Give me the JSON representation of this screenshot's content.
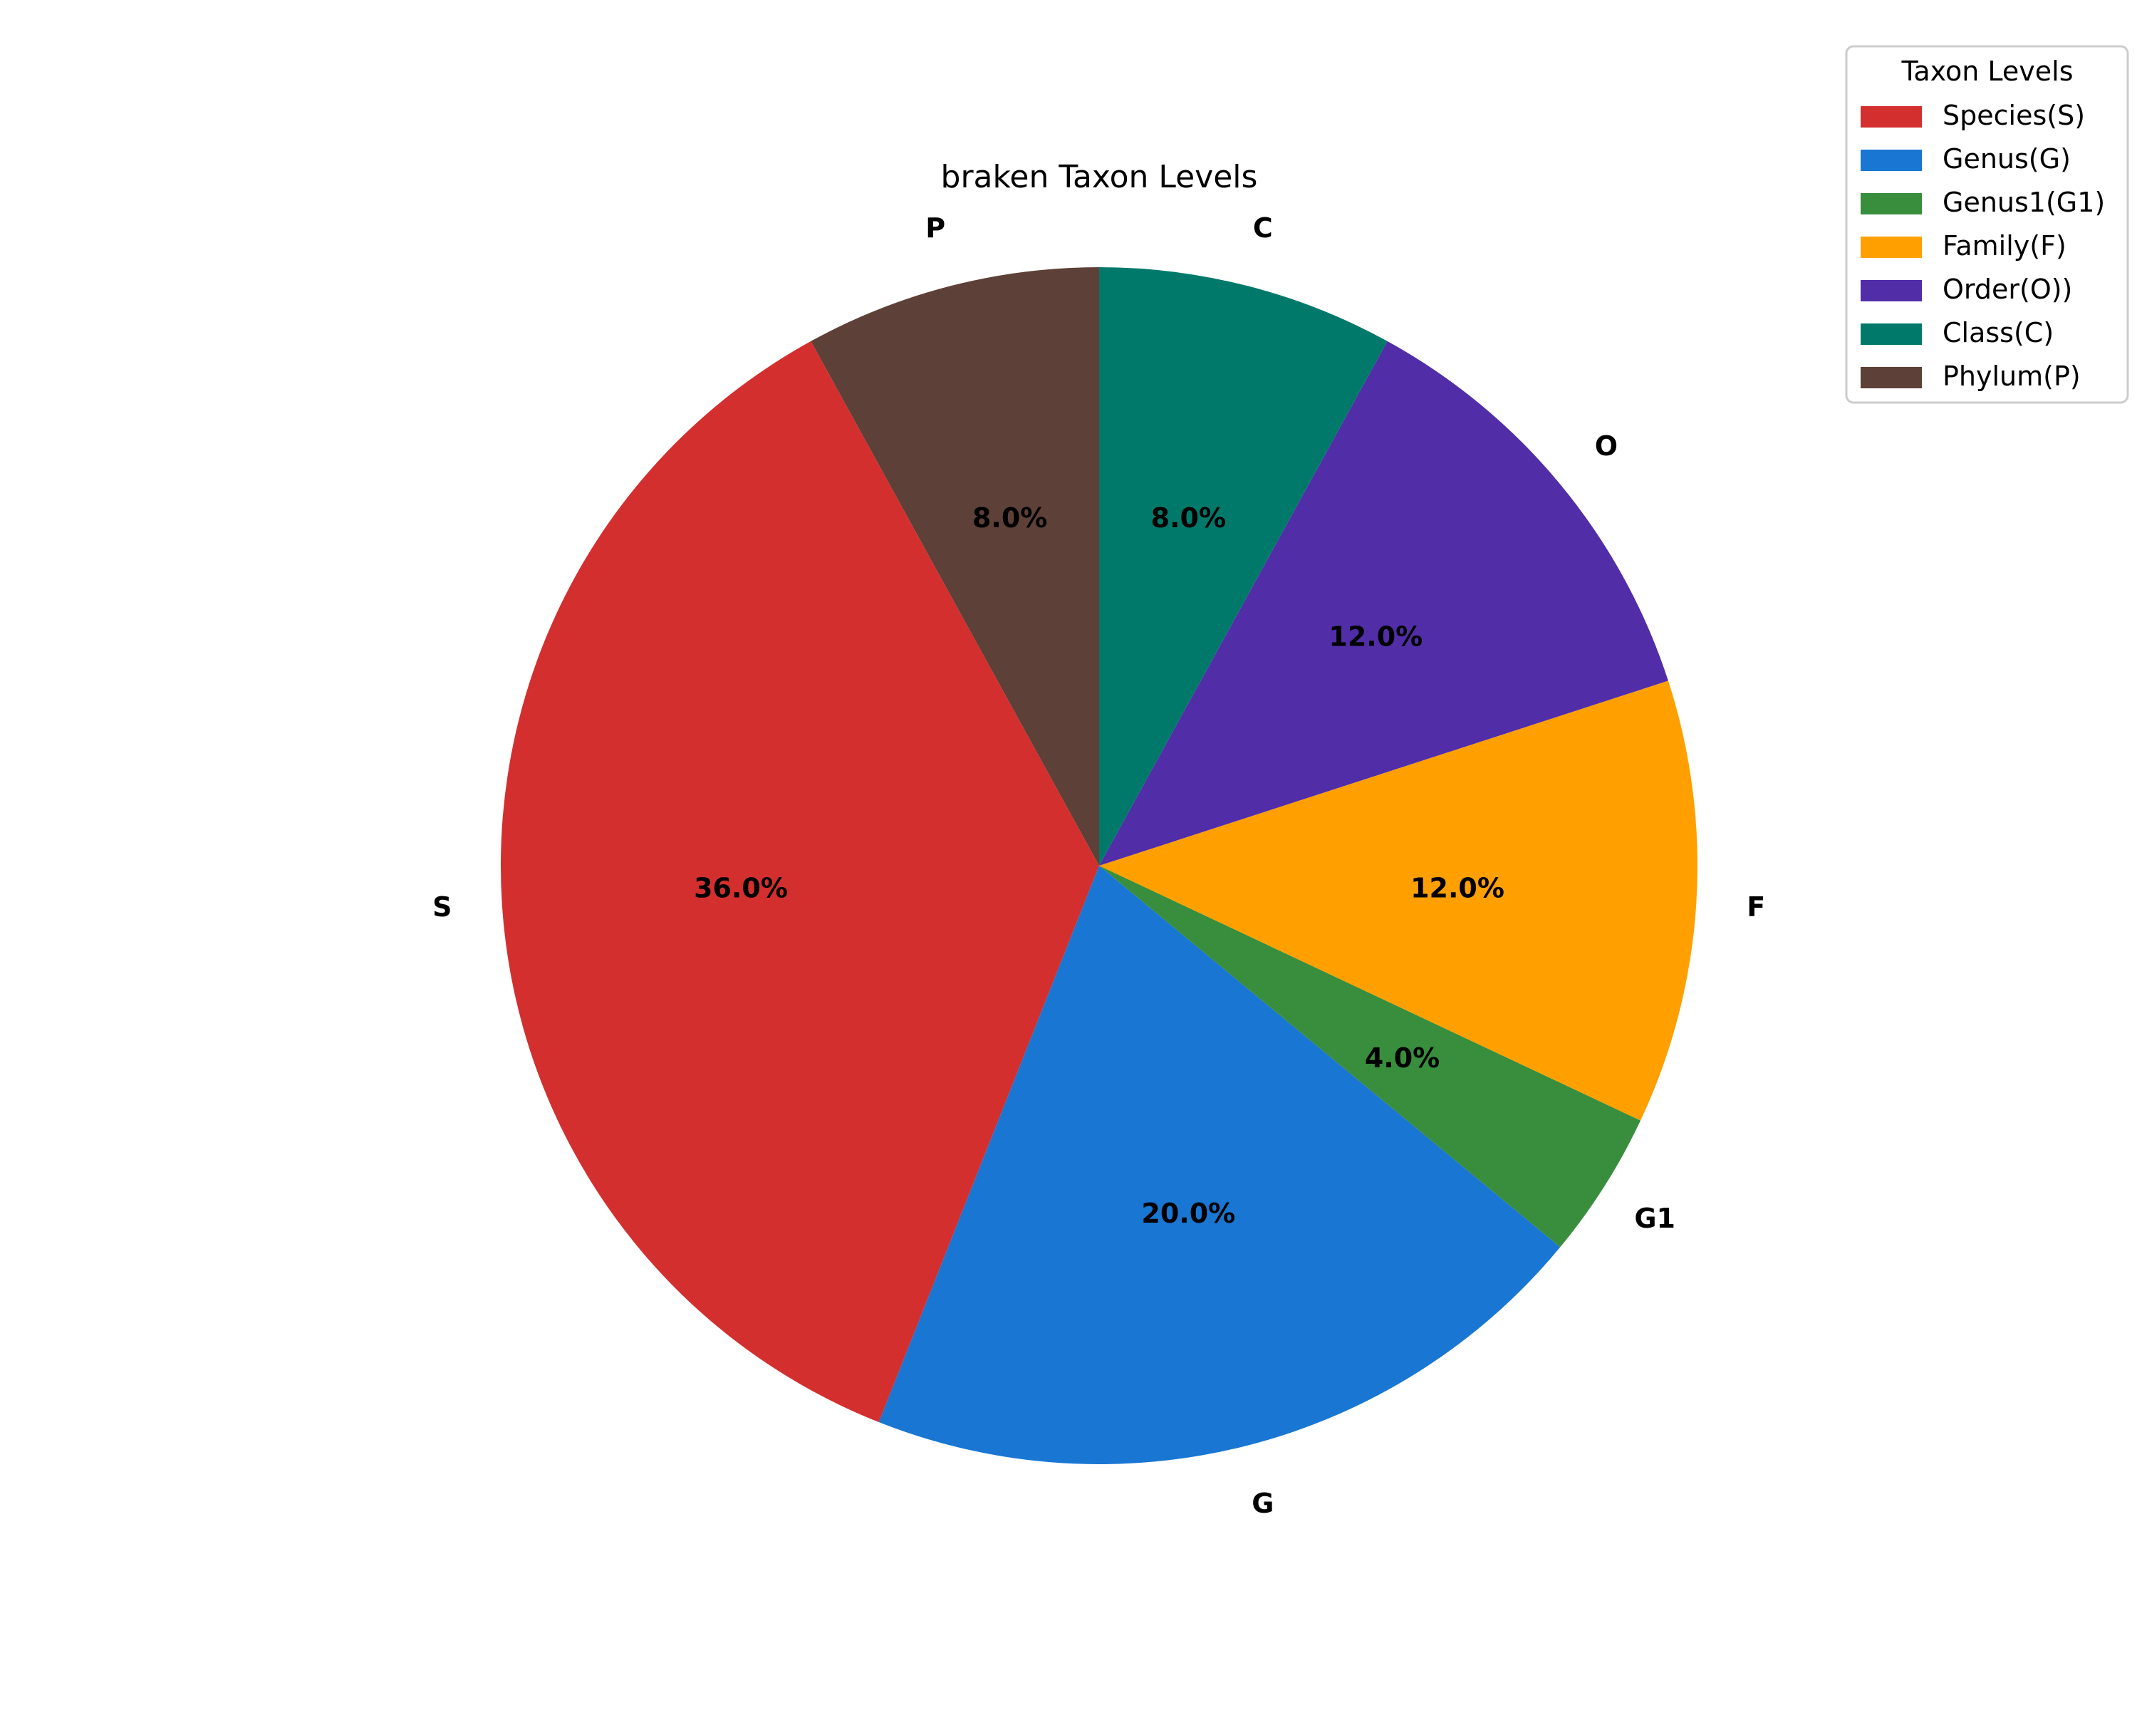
{
  "chart_data": {
    "type": "pie",
    "title": "braken Taxon Levels",
    "start_angle_deg": 90,
    "direction": "counterclockwise",
    "slices": [
      {
        "label": "P",
        "legend": "Phylum(P)",
        "value": 8.0,
        "pct_text": "8.0%",
        "color": "#5d4037"
      },
      {
        "label": "S",
        "legend": "Species(S)",
        "value": 36.0,
        "pct_text": "36.0%",
        "color": "#d32f2f"
      },
      {
        "label": "G",
        "legend": "Genus(G)",
        "value": 20.0,
        "pct_text": "20.0%",
        "color": "#1976d2"
      },
      {
        "label": "G1",
        "legend": "Genus1(G1)",
        "value": 4.0,
        "pct_text": "4.0%",
        "color": "#388e3c"
      },
      {
        "label": "F",
        "legend": "Family(F)",
        "value": 12.0,
        "pct_text": "12.0%",
        "color": "#ffa000"
      },
      {
        "label": "O",
        "legend": "Order(O))",
        "value": 12.0,
        "pct_text": "12.0%",
        "color": "#512da8"
      },
      {
        "label": "C",
        "legend": "Class(C)",
        "value": 8.0,
        "pct_text": "8.0%",
        "color": "#00796b"
      }
    ],
    "legend": {
      "title": "Taxon Levels",
      "placement": "top-right",
      "order": [
        "Species(S)",
        "Genus(G)",
        "Genus1(G1)",
        "Family(F)",
        "Order(O))",
        "Class(C)",
        "Phylum(P)"
      ]
    }
  }
}
